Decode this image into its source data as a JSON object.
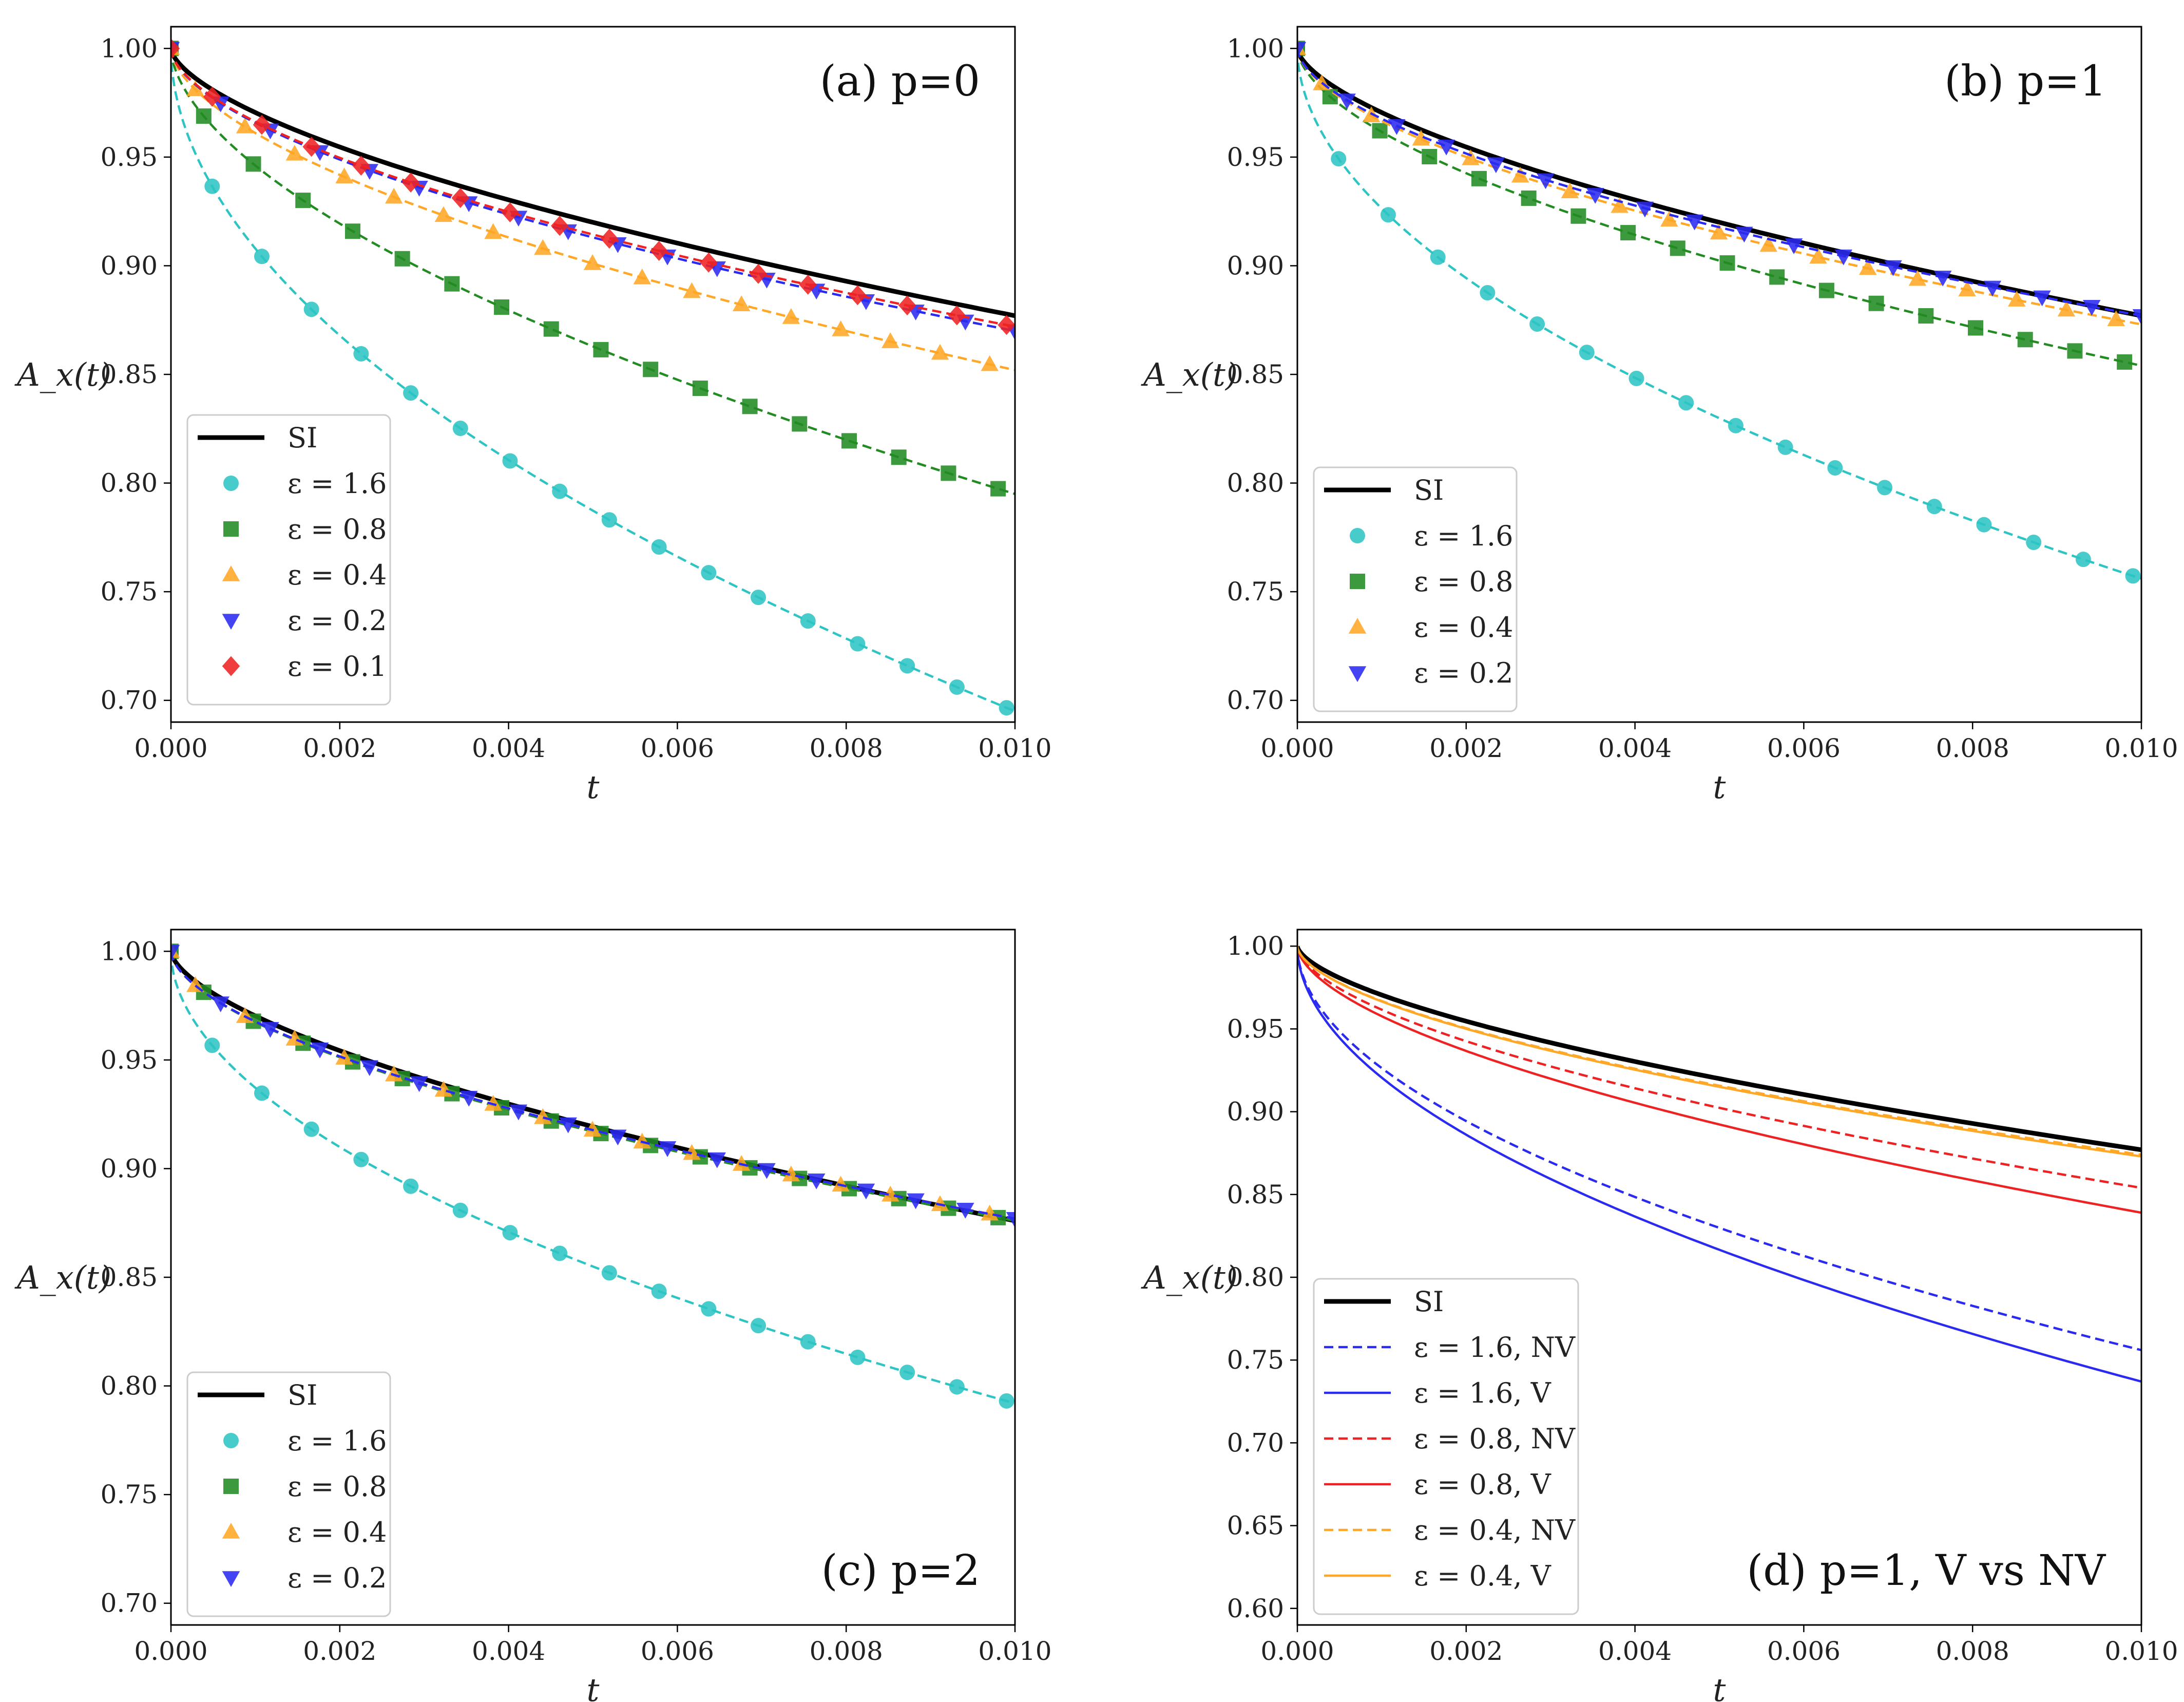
{
  "chart_data": [
    {
      "type": "line",
      "panel": "a",
      "title": "(a) p=0",
      "xlabel": "t",
      "ylabel": "A_x(t)",
      "xlim": [
        0,
        0.01
      ],
      "ylim": [
        0.69,
        1.01
      ],
      "xticks": [
        "0.000",
        "0.002",
        "0.004",
        "0.006",
        "0.008",
        "0.010"
      ],
      "yticks": [
        "0.70",
        "0.75",
        "0.80",
        "0.85",
        "0.90",
        "0.95",
        "1.00"
      ],
      "legend_position": "lower-left",
      "series": [
        {
          "name": "SI",
          "style": "solid",
          "marker": "none",
          "color": "#000000",
          "end_value": 0.877
        },
        {
          "name": "ε = 1.6",
          "style": "dashed",
          "marker": "circle",
          "color": "#2ec4c4",
          "end_value": 0.695
        },
        {
          "name": "ε = 0.8",
          "style": "dashed",
          "marker": "square",
          "color": "#228b22",
          "end_value": 0.795
        },
        {
          "name": "ε = 0.4",
          "style": "dashed",
          "marker": "triangle-up",
          "color": "#ffa726",
          "end_value": 0.852
        },
        {
          "name": "ε = 0.2",
          "style": "dashed",
          "marker": "triangle-down",
          "color": "#2a2af0",
          "end_value": 0.87
        },
        {
          "name": "ε = 0.1",
          "style": "dashed",
          "marker": "diamond",
          "color": "#ee2222",
          "end_value": 0.872
        }
      ]
    },
    {
      "type": "line",
      "panel": "b",
      "title": "(b) p=1",
      "xlabel": "t",
      "ylabel": "A_x(t)",
      "xlim": [
        0,
        0.01
      ],
      "ylim": [
        0.69,
        1.01
      ],
      "xticks": [
        "0.000",
        "0.002",
        "0.004",
        "0.006",
        "0.008",
        "0.010"
      ],
      "yticks": [
        "0.70",
        "0.75",
        "0.80",
        "0.85",
        "0.90",
        "0.95",
        "1.00"
      ],
      "legend_position": "lower-left",
      "series": [
        {
          "name": "SI",
          "style": "solid",
          "marker": "none",
          "color": "#000000",
          "end_value": 0.877
        },
        {
          "name": "ε = 1.6",
          "style": "dashed",
          "marker": "circle",
          "color": "#2ec4c4",
          "end_value": 0.756
        },
        {
          "name": "ε = 0.8",
          "style": "dashed",
          "marker": "square",
          "color": "#228b22",
          "end_value": 0.854
        },
        {
          "name": "ε = 0.4",
          "style": "dashed",
          "marker": "triangle-up",
          "color": "#ffa726",
          "end_value": 0.873
        },
        {
          "name": "ε = 0.2",
          "style": "dashed",
          "marker": "triangle-down",
          "color": "#2a2af0",
          "end_value": 0.877
        }
      ]
    },
    {
      "type": "line",
      "panel": "c",
      "title": "(c) p=2",
      "xlabel": "t",
      "ylabel": "A_x(t)",
      "xlim": [
        0,
        0.01
      ],
      "ylim": [
        0.69,
        1.01
      ],
      "xticks": [
        "0.000",
        "0.002",
        "0.004",
        "0.006",
        "0.008",
        "0.010"
      ],
      "yticks": [
        "0.70",
        "0.75",
        "0.80",
        "0.85",
        "0.90",
        "0.95",
        "1.00"
      ],
      "legend_position": "lower-left",
      "series": [
        {
          "name": "SI",
          "style": "solid",
          "marker": "none",
          "color": "#000000",
          "end_value": 0.876
        },
        {
          "name": "ε = 1.6",
          "style": "dashed",
          "marker": "circle",
          "color": "#2ec4c4",
          "end_value": 0.792
        },
        {
          "name": "ε = 0.8",
          "style": "dashed",
          "marker": "square",
          "color": "#228b22",
          "end_value": 0.876
        },
        {
          "name": "ε = 0.4",
          "style": "dashed",
          "marker": "triangle-up",
          "color": "#ffa726",
          "end_value": 0.877
        },
        {
          "name": "ε = 0.2",
          "style": "dashed",
          "marker": "triangle-down",
          "color": "#2a2af0",
          "end_value": 0.877
        }
      ]
    },
    {
      "type": "line",
      "panel": "d",
      "title": "(d) p=1, V vs NV",
      "xlabel": "t",
      "ylabel": "A_x(t)",
      "xlim": [
        0,
        0.01
      ],
      "ylim": [
        0.59,
        1.01
      ],
      "xticks": [
        "0.000",
        "0.002",
        "0.004",
        "0.006",
        "0.008",
        "0.010"
      ],
      "yticks": [
        "0.60",
        "0.65",
        "0.70",
        "0.75",
        "0.80",
        "0.85",
        "0.90",
        "0.95",
        "1.00"
      ],
      "legend_position": "lower-left",
      "series": [
        {
          "name": "SI",
          "style": "solid",
          "marker": "none",
          "color": "#000000",
          "end_value": 0.877
        },
        {
          "name": "ε = 1.6, NV",
          "style": "dashed",
          "marker": "none",
          "color": "#2a2af0",
          "end_value": 0.756
        },
        {
          "name": "ε = 1.6, V",
          "style": "solid",
          "marker": "none",
          "color": "#2a2af0",
          "end_value": 0.737
        },
        {
          "name": "ε = 0.8, NV",
          "style": "dashed",
          "marker": "none",
          "color": "#ee2222",
          "end_value": 0.854
        },
        {
          "name": "ε = 0.8, V",
          "style": "solid",
          "marker": "none",
          "color": "#ee2222",
          "end_value": 0.839
        },
        {
          "name": "ε = 0.4, NV",
          "style": "dashed",
          "marker": "none",
          "color": "#ffa726",
          "end_value": 0.874
        },
        {
          "name": "ε = 0.4, V",
          "style": "solid",
          "marker": "none",
          "color": "#ffa726",
          "end_value": 0.873
        }
      ]
    }
  ]
}
